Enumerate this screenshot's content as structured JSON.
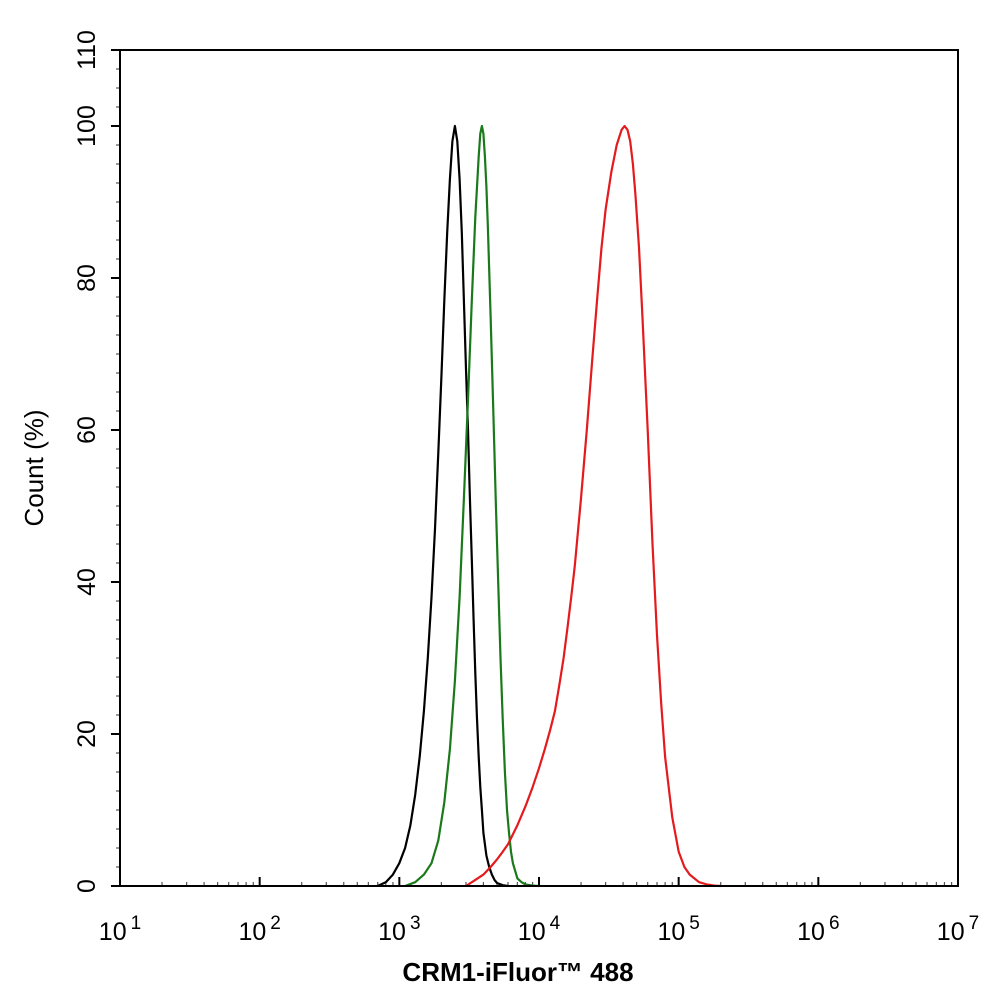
{
  "chart_data": {
    "type": "line",
    "title": "",
    "xlabel": "CRM1-iFluor™ 488",
    "ylabel": "Count  (%)",
    "x_scale": "log",
    "xlim": [
      10,
      10000000
    ],
    "ylim": [
      0,
      110
    ],
    "x_ticks": [
      {
        "value": 10,
        "base": "10",
        "exp": "1"
      },
      {
        "value": 100,
        "base": "10",
        "exp": "2"
      },
      {
        "value": 1000,
        "base": "10",
        "exp": "3"
      },
      {
        "value": 10000,
        "base": "10",
        "exp": "4"
      },
      {
        "value": 100000,
        "base": "10",
        "exp": "5"
      },
      {
        "value": 1000000,
        "base": "10",
        "exp": "6"
      },
      {
        "value": 10000000,
        "base": "10",
        "exp": "7"
      }
    ],
    "y_ticks": [
      "0",
      "20",
      "40",
      "60",
      "80",
      "100",
      "110"
    ],
    "y_tick_values": [
      0,
      20,
      40,
      60,
      80,
      100,
      110
    ],
    "grid": false,
    "legend": "none",
    "series": [
      {
        "color": "#000000",
        "x": [
          700,
          800,
          900,
          1000,
          1100,
          1200,
          1300,
          1400,
          1500,
          1600,
          1700,
          1800,
          1900,
          2000,
          2100,
          2200,
          2300,
          2400,
          2500,
          2600,
          2700,
          2800,
          2900,
          3000,
          3100,
          3200,
          3300,
          3400,
          3500,
          3600,
          3700,
          3800,
          3900,
          4000,
          4200,
          4400,
          4600,
          4800,
          5000,
          5500,
          6000
        ],
        "y": [
          0,
          0.5,
          1.5,
          3,
          5,
          8,
          12,
          17,
          23,
          30,
          38,
          47,
          57,
          67,
          77,
          86,
          93,
          98,
          100,
          98,
          93,
          86,
          77,
          68,
          60,
          51,
          43,
          35,
          28,
          22,
          17,
          13,
          10,
          7,
          4,
          2.5,
          1.5,
          0.8,
          0.4,
          0.1,
          0
        ]
      },
      {
        "color": "#1a7a1a",
        "x": [
          1100,
          1300,
          1500,
          1700,
          1900,
          2100,
          2300,
          2500,
          2700,
          2900,
          3100,
          3300,
          3500,
          3700,
          3800,
          3900,
          4000,
          4100,
          4200,
          4300,
          4500,
          4700,
          4900,
          5100,
          5300,
          5500,
          5700,
          5900,
          6100,
          6300,
          6500,
          6800,
          7000,
          7500,
          8000,
          9000,
          10000
        ],
        "y": [
          0,
          0.5,
          1.5,
          3,
          6,
          11,
          18,
          27,
          38,
          51,
          64,
          77,
          88,
          96,
          99,
          100,
          99,
          96,
          92,
          87,
          75,
          63,
          51,
          40,
          30,
          22,
          15,
          10,
          7,
          4.5,
          3,
          1.8,
          1,
          0.5,
          0.2,
          0.05,
          0
        ]
      },
      {
        "color": "#e41a1c",
        "x": [
          3000,
          3500,
          4000,
          4500,
          5000,
          5500,
          6000,
          7000,
          8000,
          9000,
          10000,
          11000,
          12000,
          13000,
          14000,
          15000,
          16000,
          17000,
          18000,
          20000,
          22000,
          24000,
          26000,
          28000,
          30000,
          33000,
          36000,
          39000,
          41000,
          43000,
          45000,
          47000,
          49000,
          52000,
          55000,
          60000,
          65000,
          70000,
          75000,
          80000,
          90000,
          100000,
          110000,
          120000,
          140000,
          160000,
          180000,
          200000
        ],
        "y": [
          0,
          0.8,
          1.5,
          2.5,
          3.5,
          4.5,
          5.5,
          8,
          10.5,
          13,
          15.5,
          18,
          20.5,
          23,
          26.5,
          30,
          34,
          38,
          42,
          51,
          60,
          69,
          77,
          84,
          89,
          94,
          97.5,
          99.5,
          100,
          99.5,
          98,
          95,
          91,
          84,
          75,
          60,
          45,
          33,
          24,
          17,
          9,
          4.5,
          2.5,
          1.5,
          0.5,
          0.2,
          0.05,
          0
        ]
      }
    ]
  }
}
